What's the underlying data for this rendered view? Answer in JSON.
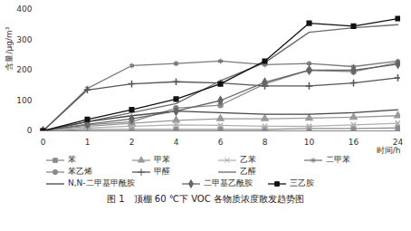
{
  "chart_data": {
    "type": "line",
    "title": "图 1　顶棚 60 ℃下 VOC 各物质浓度散发趋势图",
    "x_label": "时间/h",
    "y_label": "含量/μg/m³",
    "categories": [
      "0",
      "1",
      "2",
      "4",
      "6",
      "8",
      "10",
      "16",
      "24"
    ],
    "ylim": [
      0,
      400
    ],
    "yticks": [
      0,
      100,
      200,
      300,
      400
    ],
    "grid": false,
    "legend": "bottom",
    "series": [
      {
        "name": "苯",
        "color": "#8c8c8c",
        "marker": "square",
        "values": [
          0,
          5,
          5,
          5,
          5,
          5,
          8,
          8,
          10
        ]
      },
      {
        "name": "甲苯",
        "color": "#9a9a9a",
        "marker": "triangle",
        "values": [
          0,
          15,
          25,
          35,
          40,
          40,
          42,
          45,
          50
        ]
      },
      {
        "name": "乙苯",
        "color": "#b0b0b0",
        "marker": "times",
        "values": [
          0,
          10,
          15,
          20,
          18,
          15,
          15,
          20,
          25
        ]
      },
      {
        "name": "二甲苯",
        "color": "#7a7a7a",
        "marker": "asterisk",
        "values": [
          0,
          140,
          215,
          222,
          230,
          218,
          222,
          212,
          230
        ]
      },
      {
        "name": "苯乙烯",
        "color": "#8a8a8a",
        "marker": "circle",
        "values": [
          0,
          20,
          30,
          75,
          85,
          155,
          200,
          195,
          225
        ]
      },
      {
        "name": "甲醛",
        "color": "#555555",
        "marker": "plus",
        "values": [
          0,
          135,
          155,
          162,
          158,
          148,
          148,
          158,
          175
        ]
      },
      {
        "name": "乙醛",
        "color": "#6a6a6a",
        "marker": "none",
        "values": [
          0,
          30,
          60,
          90,
          165,
          225,
          325,
          340,
          350
        ]
      },
      {
        "name": "N,N-二甲基甲酰胺",
        "color": "#444444",
        "marker": "none",
        "values": [
          0,
          30,
          50,
          65,
          60,
          55,
          55,
          60,
          70
        ]
      },
      {
        "name": "二甲基乙酰胺",
        "color": "#666666",
        "marker": "diamond",
        "values": [
          0,
          22,
          40,
          65,
          100,
          160,
          200,
          200,
          220
        ]
      },
      {
        "name": "三乙胺",
        "color": "#111111",
        "marker": "square",
        "values": [
          0,
          38,
          70,
          105,
          155,
          230,
          355,
          345,
          370
        ]
      }
    ]
  }
}
